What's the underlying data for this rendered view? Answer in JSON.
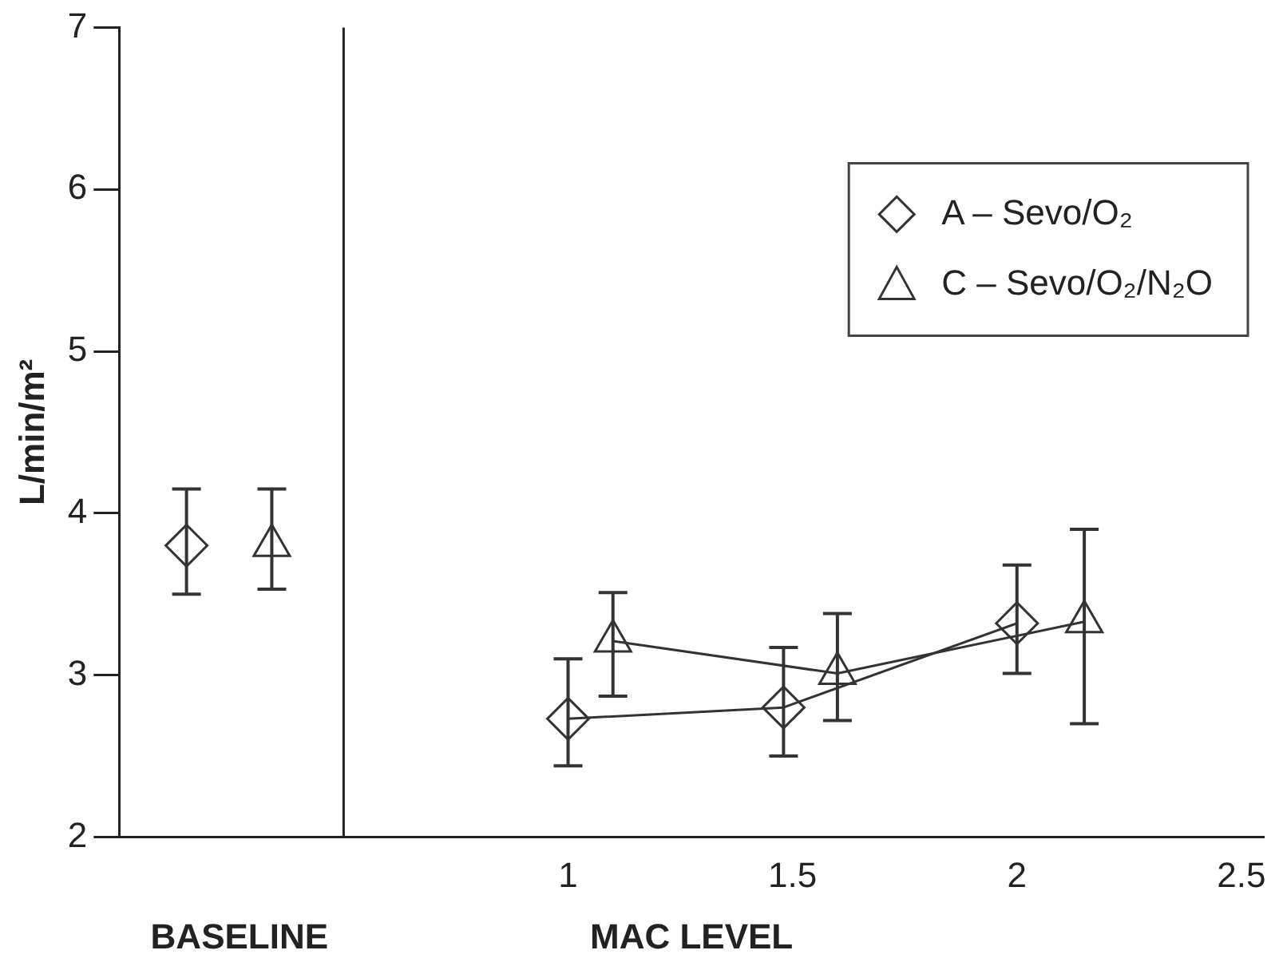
{
  "chart_data": {
    "type": "line",
    "ylabel": "L/min/m²",
    "xlabel": "MAC LEVEL",
    "annotations": [
      "BASELINE"
    ],
    "xlim": [
      0,
      2.55
    ],
    "xticks": [
      1,
      1.5,
      2,
      2.5
    ],
    "ylim": [
      2,
      7
    ],
    "yticks": [
      2,
      3,
      4,
      5,
      6,
      7
    ],
    "grid": false,
    "legend": "top right",
    "line_style": "solid",
    "ref_lines": [
      {
        "axis": "x",
        "value": 0.5,
        "color": "#222222"
      }
    ],
    "series": [
      {
        "name": "A – Sevo/O₂",
        "color": "#333333",
        "marker": "diamond",
        "x": [
          0.15,
          0.5,
          1,
          1.48,
          2
        ],
        "values": [
          3.8,
          null,
          2.73,
          2.8,
          3.32
        ],
        "errors": [
          [
            3.5,
            4.15
          ],
          null,
          [
            2.44,
            3.1
          ],
          [
            2.5,
            3.17
          ],
          [
            3.01,
            3.68
          ]
        ]
      },
      {
        "name": "C – Sevo/O₂/N₂O",
        "color": "#333333",
        "marker": "triangle",
        "x": [
          0.34,
          0.5,
          1.1,
          1.6,
          2.15
        ],
        "values": [
          3.8,
          null,
          3.21,
          3.01,
          3.33
        ],
        "errors": [
          [
            3.53,
            4.15
          ],
          null,
          [
            2.87,
            3.51
          ],
          [
            2.72,
            3.38
          ],
          [
            2.7,
            3.9
          ]
        ]
      }
    ]
  }
}
